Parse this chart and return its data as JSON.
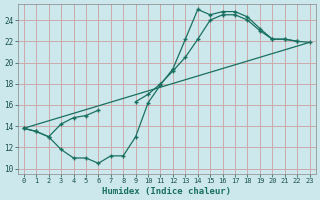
{
  "bg_color": "#cce8ec",
  "grid_color": "#ccaaaa",
  "line_color": "#1a7060",
  "xlabel": "Humidex (Indice chaleur)",
  "xlim": [
    -0.5,
    23.5
  ],
  "ylim": [
    9.5,
    25.5
  ],
  "xticks": [
    0,
    1,
    2,
    3,
    4,
    5,
    6,
    7,
    8,
    9,
    10,
    11,
    12,
    13,
    14,
    15,
    16,
    17,
    18,
    19,
    20,
    21,
    22,
    23
  ],
  "yticks": [
    10,
    12,
    14,
    16,
    18,
    20,
    22,
    24
  ],
  "curve_dip": {
    "x": [
      0,
      1,
      2,
      3,
      4,
      5,
      6,
      7,
      8,
      9,
      10,
      11,
      12,
      13,
      14,
      15,
      16,
      17,
      18,
      19,
      20,
      21,
      22
    ],
    "y": [
      13.8,
      13.5,
      13.0,
      11.8,
      11.0,
      11.0,
      10.5,
      11.2,
      11.2,
      13.0,
      16.2,
      17.9,
      19.4,
      22.2,
      25.0,
      24.5,
      24.8,
      24.8,
      24.3,
      23.2,
      22.2,
      22.2,
      22.0
    ]
  },
  "curve_mid": {
    "segments": [
      {
        "x": [
          0,
          1,
          2,
          3,
          4,
          5,
          6
        ],
        "y": [
          13.8,
          13.5,
          13.0,
          14.2,
          14.8,
          15.0,
          15.5
        ]
      },
      {
        "x": [
          9,
          10,
          11,
          12,
          13,
          14,
          15,
          16,
          17,
          18,
          19,
          20,
          21,
          22,
          23
        ],
        "y": [
          16.3,
          17.0,
          18.0,
          19.2,
          20.5,
          22.2,
          24.0,
          24.5,
          24.5,
          24.0,
          23.0,
          22.2,
          22.2,
          22.0,
          21.9
        ]
      }
    ]
  },
  "curve_straight": {
    "x": [
      0,
      23
    ],
    "y": [
      13.8,
      21.9
    ]
  }
}
